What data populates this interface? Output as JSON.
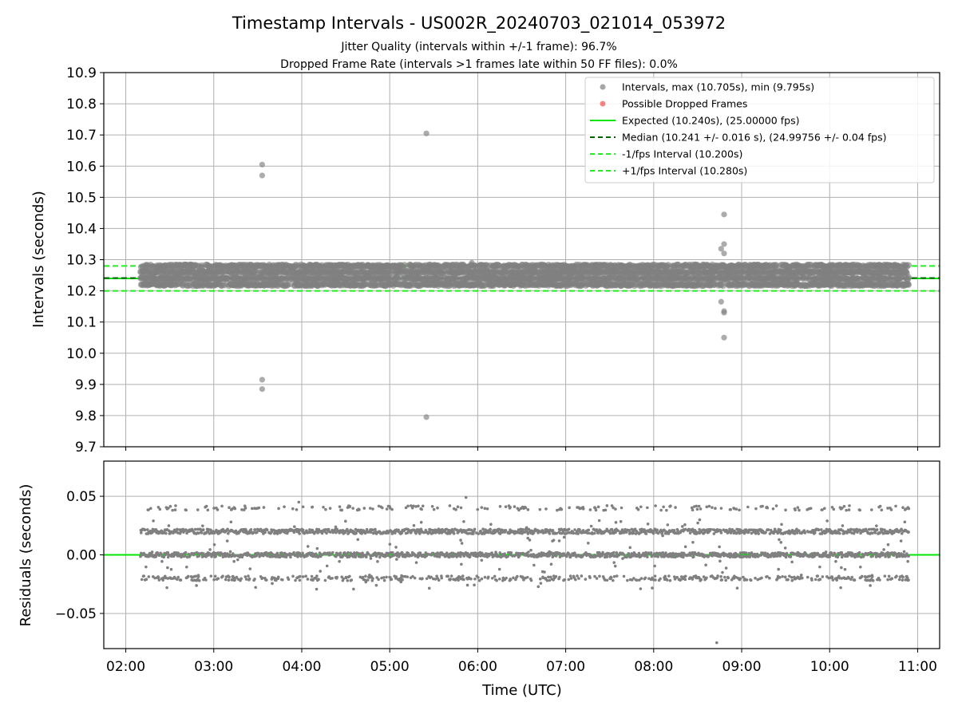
{
  "figure": {
    "title": "Timestamp Intervals - US002R_20240703_021014_053972",
    "subtitle_line1": "Jitter Quality (intervals within +/-1 frame): 96.7%",
    "subtitle_line2": "Dropped Frame Rate (intervals >1 frames late within 50 FF files): 0.0%"
  },
  "colors": {
    "points": "#808080",
    "dropped": "#f05050",
    "expected": "#00e600",
    "median": "#006400",
    "interval_band": "#22ee22",
    "grid": "#b0b0b0",
    "axes": "#000000"
  },
  "chart_data": [
    {
      "type": "scatter",
      "name": "intervals",
      "xlabel": "",
      "ylabel": "Intervals (seconds)",
      "xlim": [
        "01:45",
        "11:15"
      ],
      "ylim": [
        9.7,
        10.9
      ],
      "yticks": [
        "9.7",
        "9.8",
        "9.9",
        "10.0",
        "10.1",
        "10.2",
        "10.3",
        "10.4",
        "10.5",
        "10.6",
        "10.7",
        "10.8",
        "10.9"
      ],
      "xticks": [
        "02:00",
        "03:00",
        "04:00",
        "05:00",
        "06:00",
        "07:00",
        "08:00",
        "09:00",
        "10:00",
        "11:00"
      ],
      "grid": true,
      "legend_position": "top-right",
      "time_range": [
        "02:10",
        "10:54"
      ],
      "main_band": {
        "levels": [
          10.22,
          10.24,
          10.26,
          10.28
        ],
        "description": "dense cluster of interval points between 10.22 s and 10.28 s across the full time range"
      },
      "outliers": [
        {
          "time": "03:33",
          "value": 10.605
        },
        {
          "time": "03:33",
          "value": 10.57
        },
        {
          "time": "03:33",
          "value": 9.915
        },
        {
          "time": "03:33",
          "value": 9.885
        },
        {
          "time": "05:25",
          "value": 10.705
        },
        {
          "time": "05:25",
          "value": 9.795
        },
        {
          "time": "05:56",
          "value": 10.29
        },
        {
          "time": "08:46",
          "value": 10.335
        },
        {
          "time": "08:46",
          "value": 10.165
        },
        {
          "time": "08:48",
          "value": 10.445
        },
        {
          "time": "08:48",
          "value": 10.35
        },
        {
          "time": "08:48",
          "value": 10.32
        },
        {
          "time": "08:48",
          "value": 10.135
        },
        {
          "time": "08:48",
          "value": 10.13
        },
        {
          "time": "08:48",
          "value": 10.05
        }
      ],
      "reference_lines": [
        {
          "name": "Expected",
          "value": 10.24,
          "style": "solid"
        },
        {
          "name": "Median",
          "value": 10.241,
          "style": "dashed"
        },
        {
          "name": "-1/fps Interval",
          "value": 10.2,
          "style": "dashed"
        },
        {
          "name": "+1/fps Interval",
          "value": 10.28,
          "style": "dashed"
        }
      ],
      "legend": [
        {
          "label": "Intervals, max (10.705s), min (9.795s)",
          "marker": "dot",
          "color": "#808080"
        },
        {
          "label": "Possible Dropped Frames",
          "marker": "dot",
          "color": "#f05050"
        },
        {
          "label": "Expected (10.240s), (25.00000 fps)",
          "marker": "solid",
          "color": "#00e600"
        },
        {
          "label": "Median (10.241 +/- 0.016 s), (24.99756 +/- 0.04 fps)",
          "marker": "dashed",
          "color": "#006400"
        },
        {
          "label": "-1/fps Interval (10.200s)",
          "marker": "dashed",
          "color": "#22ee22"
        },
        {
          "label": "+1/fps Interval (10.280s)",
          "marker": "dashed",
          "color": "#22ee22"
        }
      ]
    },
    {
      "type": "scatter",
      "name": "residuals",
      "xlabel": "Time (UTC)",
      "ylabel": "Residuals (seconds)",
      "xlim": [
        "01:45",
        "11:15"
      ],
      "ylim": [
        -0.08,
        0.08
      ],
      "yticks": [
        "0.05",
        "0.00",
        "−0.05"
      ],
      "ytick_values": [
        0.05,
        0.0,
        -0.05
      ],
      "xticks": [
        "02:00",
        "03:00",
        "04:00",
        "05:00",
        "06:00",
        "07:00",
        "08:00",
        "09:00",
        "10:00",
        "11:00"
      ],
      "grid": true,
      "bands": [
        {
          "value": 0.04,
          "density": "sparse"
        },
        {
          "value": 0.02,
          "density": "dense"
        },
        {
          "value": 0.0,
          "density": "dense"
        },
        {
          "value": -0.02,
          "density": "medium"
        }
      ],
      "outliers": [
        {
          "time": "05:52",
          "value": 0.049
        },
        {
          "time": "03:58",
          "value": 0.045
        },
        {
          "time": "08:43",
          "value": -0.075
        }
      ],
      "zero_line": {
        "value": 0.0,
        "color": "#00e600"
      }
    }
  ]
}
